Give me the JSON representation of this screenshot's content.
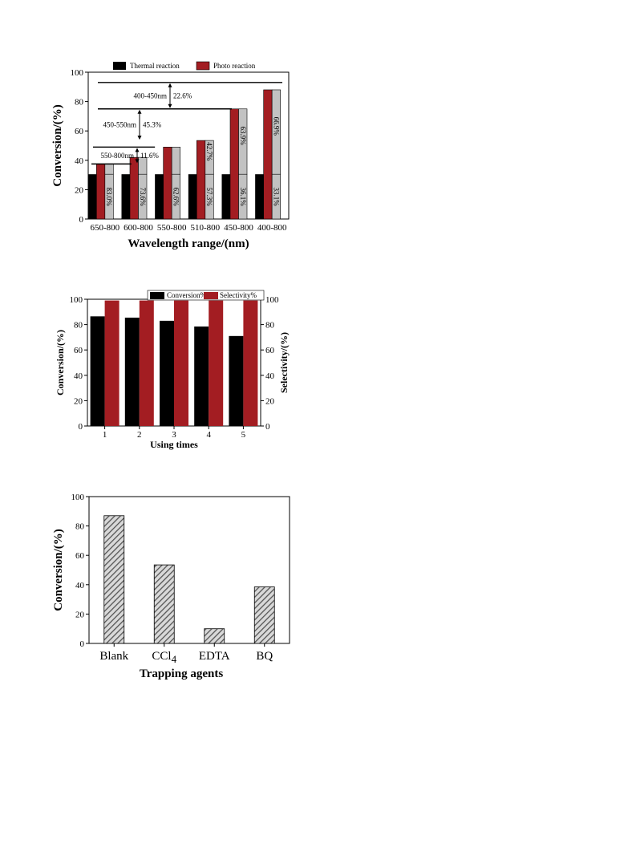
{
  "charts": [
    {
      "type": "bar",
      "ylabel": "Conversion/(%)",
      "xlabel": "Wavelength range/(nm)",
      "ylim": [
        0,
        100
      ],
      "yticks": [
        0,
        20,
        40,
        60,
        80,
        100
      ],
      "categories": [
        "650-800",
        "600-800",
        "550-800",
        "510-800",
        "450-800",
        "400-800"
      ],
      "legend": [
        "Thermal reaction",
        "Photo reaction"
      ],
      "series": [
        {
          "name": "Thermal reaction",
          "values": [
            30.5,
            30.5,
            30.5,
            30.5,
            30.5,
            30.5
          ]
        },
        {
          "name": "Photo reaction",
          "values": [
            37.5,
            42,
            49,
            53.5,
            75,
            88
          ]
        }
      ],
      "stack_labels": [
        "83.0%",
        "73.6%",
        "62.6%",
        "57.3%",
        "36.1%",
        "33.1%"
      ],
      "photo_top_labels": [
        "",
        "",
        "",
        "42.7%",
        "63.9%",
        "66.9%"
      ],
      "brackets": [
        {
          "range": "550-800nm",
          "pct": "11.6%",
          "y_from": 37.5,
          "y_to": 49
        },
        {
          "range": "450-550nm",
          "pct": "45.3%",
          "y_from": 53.5,
          "y_to": 75
        },
        {
          "range": "400-450nm",
          "pct": "22.6%",
          "y_from": 75,
          "y_to": 93
        }
      ],
      "colors": {
        "thermal": "#000000",
        "photo": "#a31d22",
        "shade": "#c2c2c2"
      }
    },
    {
      "type": "bar",
      "ylabel": "Conversion/(%)",
      "y2label": "Selectivity/(%)",
      "xlabel": "Using times",
      "ylim": [
        0,
        100
      ],
      "yticks": [
        0,
        20,
        40,
        60,
        80,
        100
      ],
      "categories": [
        "1",
        "2",
        "3",
        "4",
        "5"
      ],
      "legend": [
        "Conversion%",
        "Selectivity%"
      ],
      "series": [
        {
          "name": "Conversion%",
          "values": [
            86.5,
            85.5,
            83,
            78.5,
            71
          ]
        },
        {
          "name": "Selectivity%",
          "values": [
            99,
            99,
            99,
            99,
            99
          ]
        }
      ],
      "colors": {
        "conversion": "#000000",
        "selectivity": "#a31d22"
      }
    },
    {
      "type": "bar",
      "ylabel": "Conversion/(%)",
      "xlabel": "Trapping agents",
      "ylim": [
        0,
        100
      ],
      "yticks": [
        0,
        20,
        40,
        60,
        80,
        100
      ],
      "categories": [
        "Blank",
        "CCl",
        "EDTA",
        "BQ"
      ],
      "category_subscripts": [
        "",
        "4",
        "",
        ""
      ],
      "values": [
        87,
        53.5,
        10,
        38.5
      ],
      "colors": {
        "bar": "#8a8a8a"
      }
    }
  ],
  "chart_data": [
    {
      "type": "bar",
      "categories": [
        "650-800",
        "600-800",
        "550-800",
        "510-800",
        "450-800",
        "400-800"
      ],
      "series": [
        {
          "name": "Thermal reaction",
          "values": [
            30.5,
            30.5,
            30.5,
            30.5,
            30.5,
            30.5
          ]
        },
        {
          "name": "Photo reaction",
          "values": [
            37.5,
            42,
            49,
            53.5,
            75,
            88
          ]
        }
      ],
      "xlabel": "Wavelength range/(nm)",
      "ylabel": "Conversion/(%)",
      "ylim": [
        0,
        100
      ]
    },
    {
      "type": "bar",
      "categories": [
        "1",
        "2",
        "3",
        "4",
        "5"
      ],
      "series": [
        {
          "name": "Conversion%",
          "values": [
            86.5,
            85.5,
            83,
            78.5,
            71
          ]
        },
        {
          "name": "Selectivity%",
          "values": [
            99,
            99,
            99,
            99,
            99
          ]
        }
      ],
      "xlabel": "Using times",
      "ylabel": "Conversion/(%)",
      "y2label": "Selectivity/(%)",
      "ylim": [
        0,
        100
      ]
    },
    {
      "type": "bar",
      "categories": [
        "Blank",
        "CCl4",
        "EDTA",
        "BQ"
      ],
      "values": [
        87,
        53.5,
        10,
        38.5
      ],
      "xlabel": "Trapping agents",
      "ylabel": "Conversion/(%)",
      "ylim": [
        0,
        100
      ]
    }
  ]
}
